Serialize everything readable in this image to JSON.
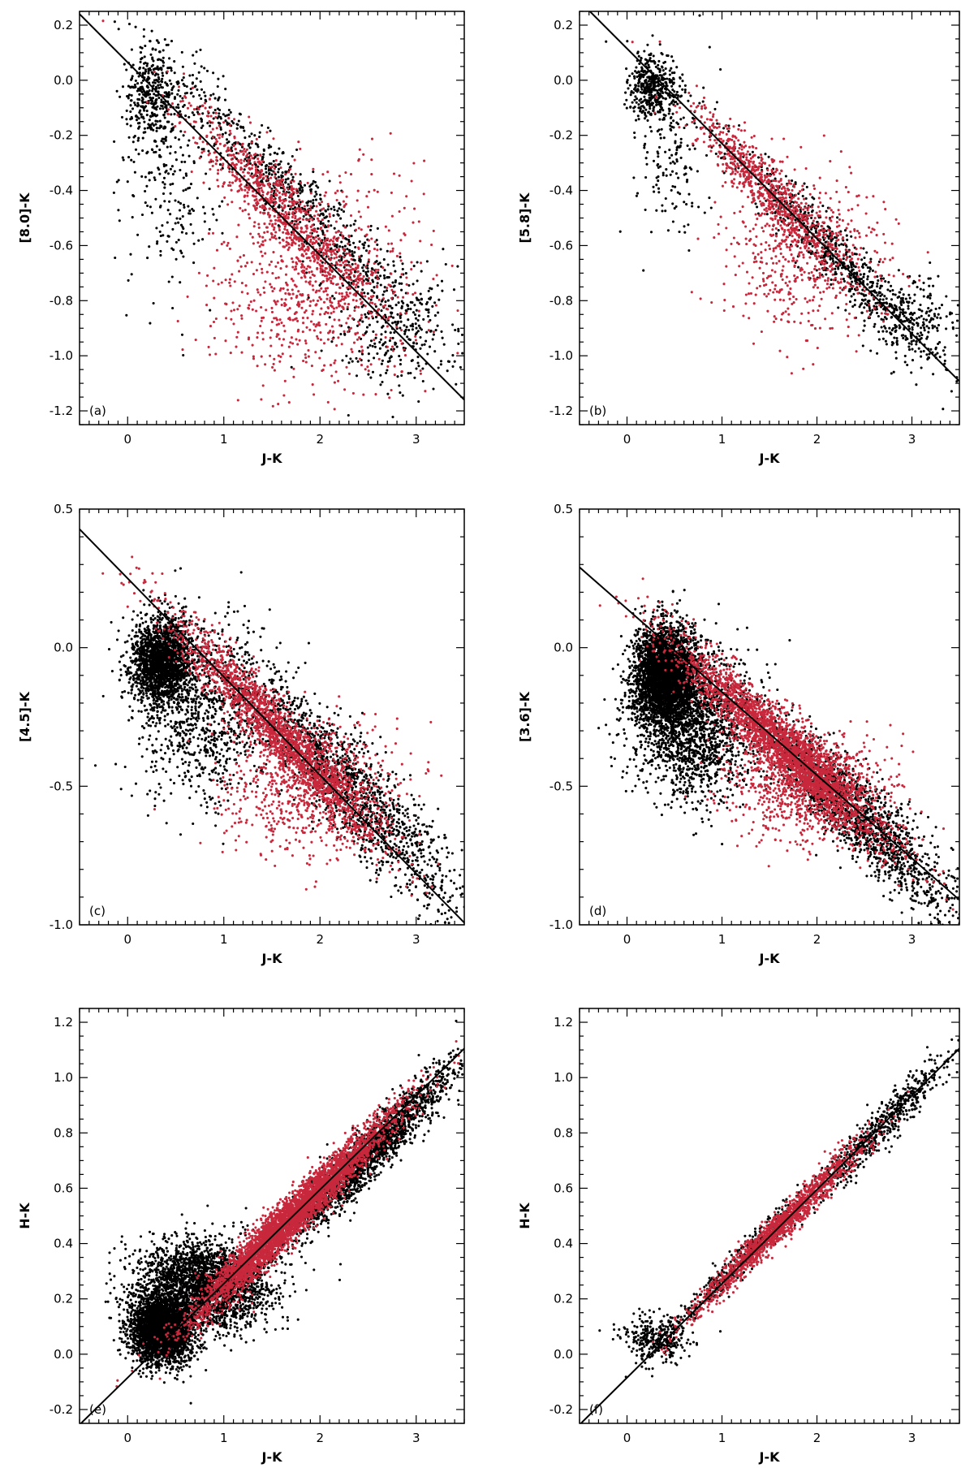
{
  "figure": {
    "colors": {
      "series_a": "#000000",
      "series_b": "#c8283c",
      "fit_line": "#000000"
    }
  },
  "chart_data": [
    {
      "type": "scatter",
      "panel_label": "(a)",
      "xlabel": "J-K",
      "ylabel": "[8.0]-K",
      "xlim": [
        -0.5,
        3.5
      ],
      "ylim": [
        -1.25,
        0.25
      ],
      "xticks": [
        0,
        1,
        2,
        3
      ],
      "yticks": [
        0.2,
        0.0,
        -0.2,
        -0.4,
        -0.6,
        -0.8,
        -1.0,
        -1.2
      ],
      "ytick_labels": [
        "0.2",
        "0.0",
        "-0.2",
        "-0.4",
        "-0.6",
        "-0.8",
        "-1.0",
        "-1.2"
      ],
      "fit_line": {
        "slope": -0.35,
        "intercept": 0.065
      },
      "series": [
        {
          "color": "black",
          "count": 1600,
          "clusters": [
            {
              "x": 0.25,
              "y": -0.06,
              "sx": 0.15,
              "sy": 0.08,
              "w": 0.22
            },
            {
              "x": 0.45,
              "y": -0.35,
              "sx": 0.25,
              "sy": 0.22,
              "w": 0.15
            },
            {
              "x": 1.8,
              "y": -0.44,
              "sx": 0.75,
              "sy": 0.07,
              "w": 0.45,
              "along": true
            },
            {
              "x": 2.8,
              "y": -0.9,
              "sx": 0.35,
              "sy": 0.12,
              "w": 0.18
            }
          ]
        },
        {
          "color": "red",
          "count": 1600,
          "clusters": [
            {
              "x": 1.6,
              "y": -0.47,
              "sx": 0.5,
              "sy": 0.07,
              "w": 0.55,
              "along": true
            },
            {
              "x": 1.95,
              "y": -0.75,
              "sx": 0.55,
              "sy": 0.2,
              "w": 0.45
            }
          ]
        }
      ]
    },
    {
      "type": "scatter",
      "panel_label": "(b)",
      "xlabel": "J-K",
      "ylabel": "[5.8]-K",
      "xlim": [
        -0.5,
        3.5
      ],
      "ylim": [
        -1.25,
        0.25
      ],
      "xticks": [
        0,
        1,
        2,
        3
      ],
      "yticks": [
        0.2,
        0.0,
        -0.2,
        -0.4,
        -0.6,
        -0.8,
        -1.0,
        -1.2
      ],
      "ytick_labels": [
        "0.2",
        "0.0",
        "-0.2",
        "-0.4",
        "-0.6",
        "-0.8",
        "-1.0",
        "-1.2"
      ],
      "fit_line": {
        "slope": -0.345,
        "intercept": 0.115
      },
      "series": [
        {
          "color": "black",
          "count": 1500,
          "clusters": [
            {
              "x": 0.27,
              "y": -0.03,
              "sx": 0.12,
              "sy": 0.06,
              "w": 0.28
            },
            {
              "x": 0.5,
              "y": -0.25,
              "sx": 0.2,
              "sy": 0.15,
              "w": 0.12
            },
            {
              "x": 2.2,
              "y": -0.64,
              "sx": 0.55,
              "sy": 0.06,
              "w": 0.45,
              "along": true
            },
            {
              "x": 3.0,
              "y": -0.86,
              "sx": 0.25,
              "sy": 0.08,
              "w": 0.15
            }
          ]
        },
        {
          "color": "red",
          "count": 1300,
          "clusters": [
            {
              "x": 1.45,
              "y": -0.39,
              "sx": 0.4,
              "sy": 0.06,
              "w": 0.6,
              "along": true
            },
            {
              "x": 1.9,
              "y": -0.65,
              "sx": 0.45,
              "sy": 0.14,
              "w": 0.4
            }
          ]
        }
      ]
    },
    {
      "type": "scatter",
      "panel_label": "(c)",
      "xlabel": "J-K",
      "ylabel": "[4.5]-K",
      "xlim": [
        -0.5,
        3.5
      ],
      "ylim": [
        -1.0,
        0.5
      ],
      "xticks": [
        0,
        1,
        2,
        3
      ],
      "yticks": [
        0.5,
        0.0,
        -0.5,
        -1.0
      ],
      "ytick_labels": [
        "0.5",
        "0.0",
        "-0.5",
        "-1.0"
      ],
      "fit_line": {
        "slope": -0.355,
        "intercept": 0.25
      },
      "series": [
        {
          "color": "black",
          "count": 4200,
          "clusters": [
            {
              "x": 0.35,
              "y": -0.05,
              "sx": 0.16,
              "sy": 0.08,
              "w": 0.45
            },
            {
              "x": 0.8,
              "y": -0.25,
              "sx": 0.35,
              "sy": 0.15,
              "w": 0.2
            },
            {
              "x": 2.3,
              "y": -0.5,
              "sx": 0.6,
              "sy": 0.1,
              "w": 0.35,
              "along": true
            }
          ]
        },
        {
          "color": "red",
          "count": 2600,
          "clusters": [
            {
              "x": 1.55,
              "y": -0.3,
              "sx": 0.55,
              "sy": 0.06,
              "w": 0.7,
              "along": true
            },
            {
              "x": 1.9,
              "y": -0.5,
              "sx": 0.45,
              "sy": 0.12,
              "w": 0.3
            }
          ]
        }
      ]
    },
    {
      "type": "scatter",
      "panel_label": "(d)",
      "xlabel": "J-K",
      "ylabel": "[3.6]-K",
      "xlim": [
        -0.5,
        3.5
      ],
      "ylim": [
        -1.0,
        0.5
      ],
      "xticks": [
        0,
        1,
        2,
        3
      ],
      "yticks": [
        0.5,
        0.0,
        -0.5,
        -1.0
      ],
      "ytick_labels": [
        "0.5",
        "0.0",
        "-0.5",
        "-1.0"
      ],
      "fit_line": {
        "slope": -0.3,
        "intercept": 0.14
      },
      "series": [
        {
          "color": "black",
          "count": 6500,
          "clusters": [
            {
              "x": 0.4,
              "y": -0.1,
              "sx": 0.17,
              "sy": 0.09,
              "w": 0.5
            },
            {
              "x": 0.7,
              "y": -0.28,
              "sx": 0.3,
              "sy": 0.13,
              "w": 0.25
            },
            {
              "x": 2.4,
              "y": -0.6,
              "sx": 0.55,
              "sy": 0.08,
              "w": 0.25,
              "along": true
            }
          ]
        },
        {
          "color": "red",
          "count": 3500,
          "clusters": [
            {
              "x": 1.6,
              "y": -0.34,
              "sx": 0.55,
              "sy": 0.06,
              "w": 0.75,
              "along": true
            },
            {
              "x": 1.9,
              "y": -0.5,
              "sx": 0.4,
              "sy": 0.1,
              "w": 0.25
            }
          ]
        }
      ]
    },
    {
      "type": "scatter",
      "panel_label": "(e)",
      "xlabel": "J-K",
      "ylabel": "H-K",
      "xlim": [
        -0.5,
        3.5
      ],
      "ylim": [
        -0.25,
        1.25
      ],
      "xticks": [
        0,
        1,
        2,
        3
      ],
      "yticks": [
        1.2,
        1.0,
        0.8,
        0.6,
        0.4,
        0.2,
        0.0,
        -0.2
      ],
      "ytick_labels": [
        "1.2",
        "1.0",
        "0.8",
        "0.6",
        "0.4",
        "0.2",
        "0.0",
        "-0.2"
      ],
      "fit_line": {
        "slope": 0.34,
        "intercept": -0.085
      },
      "series": [
        {
          "color": "black",
          "count": 7500,
          "clusters": [
            {
              "x": 0.35,
              "y": 0.09,
              "sx": 0.16,
              "sy": 0.06,
              "w": 0.4
            },
            {
              "x": 0.8,
              "y": 0.25,
              "sx": 0.35,
              "sy": 0.08,
              "w": 0.35
            },
            {
              "x": 2.5,
              "y": 0.72,
              "sx": 0.45,
              "sy": 0.05,
              "w": 0.25,
              "along": true
            }
          ]
        },
        {
          "color": "red",
          "count": 4200,
          "clusters": [
            {
              "x": 1.75,
              "y": 0.51,
              "sx": 0.5,
              "sy": 0.04,
              "w": 0.9,
              "along": true
            },
            {
              "x": 1.3,
              "y": 0.33,
              "sx": 0.3,
              "sy": 0.05,
              "w": 0.1,
              "along": true
            }
          ]
        }
      ]
    },
    {
      "type": "scatter",
      "panel_label": "(f)",
      "xlabel": "J-K",
      "ylabel": "H-K",
      "xlim": [
        -0.5,
        3.5
      ],
      "ylim": [
        -0.25,
        1.25
      ],
      "xticks": [
        0,
        1,
        2,
        3
      ],
      "yticks": [
        1.2,
        1.0,
        0.8,
        0.6,
        0.4,
        0.2,
        0.0,
        -0.2
      ],
      "ytick_labels": [
        "1.2",
        "1.0",
        "0.8",
        "0.6",
        "0.4",
        "0.2",
        "0.0",
        "-0.2"
      ],
      "fit_line": {
        "slope": 0.34,
        "intercept": -0.085
      },
      "series": [
        {
          "color": "black",
          "count": 1300,
          "clusters": [
            {
              "x": 0.3,
              "y": 0.06,
              "sx": 0.18,
              "sy": 0.04,
              "w": 0.25
            },
            {
              "x": 2.7,
              "y": 0.83,
              "sx": 0.35,
              "sy": 0.04,
              "w": 0.45,
              "along": true
            },
            {
              "x": 1.2,
              "y": 0.34,
              "sx": 0.4,
              "sy": 0.03,
              "w": 0.3,
              "along": true
            }
          ]
        },
        {
          "color": "red",
          "count": 1500,
          "clusters": [
            {
              "x": 1.6,
              "y": 0.46,
              "sx": 0.45,
              "sy": 0.03,
              "w": 1.0,
              "along": true
            }
          ]
        }
      ]
    }
  ]
}
